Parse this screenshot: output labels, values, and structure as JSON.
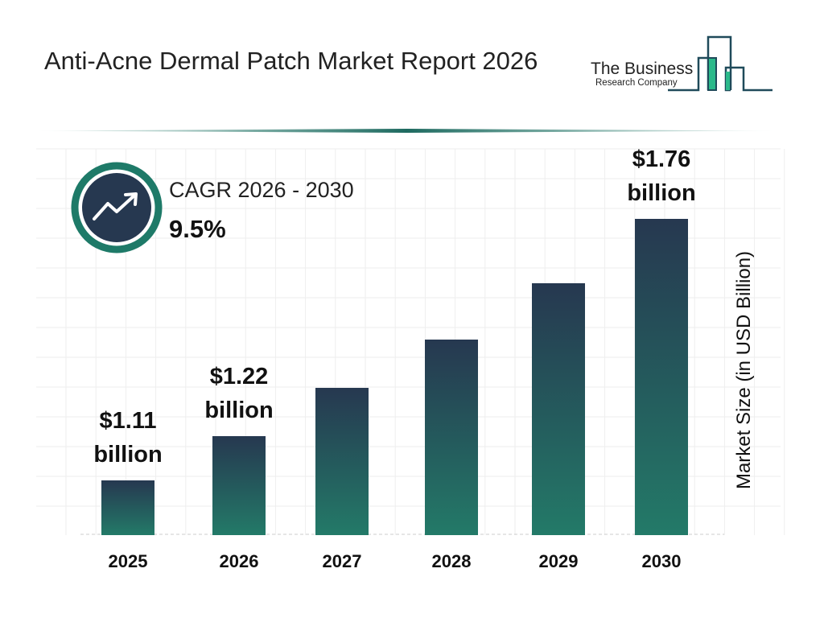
{
  "title": "Anti-Acne Dermal Patch Market Report 2026",
  "logo": {
    "line1": "The Business",
    "line2": "Research Company"
  },
  "cagr": {
    "label": "CAGR 2026 - 2030",
    "value": "9.5%",
    "icon": "trend-up-arrow-icon"
  },
  "colors": {
    "bar_top": "#263850",
    "bar_bottom": "#237a68",
    "accent": "#1e7a68",
    "logo_green": "#2bb98a"
  },
  "chart_data": {
    "type": "bar",
    "categories": [
      "2025",
      "2026",
      "2027",
      "2028",
      "2029",
      "2030"
    ],
    "values": [
      1.11,
      1.22,
      1.34,
      1.46,
      1.6,
      1.76
    ],
    "data_labels": [
      "$1.11 billion",
      "$1.22 billion",
      "",
      "",
      "",
      "$1.76 billion"
    ],
    "ylabel": "Market Size (in USD Billion)",
    "grid": true
  }
}
